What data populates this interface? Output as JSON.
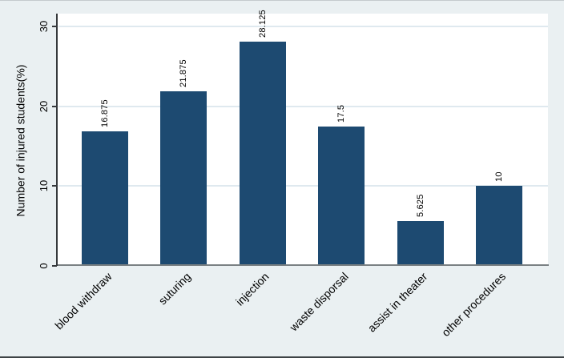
{
  "chart_data": {
    "type": "bar",
    "title": "",
    "xlabel": "",
    "ylabel": "Number of injured students(%)",
    "categories": [
      "blood withdraw",
      "suturing",
      "injection",
      "waste disporsal",
      "assist in theater",
      "other procedures"
    ],
    "values": [
      16.875,
      21.875,
      28.125,
      17.5,
      5.625,
      10
    ],
    "bar_value_labels": [
      "16.875",
      "21.875",
      "28.125",
      "17.5",
      "5.625",
      "10"
    ],
    "ylim": [
      0,
      30
    ],
    "yticks": [
      0,
      10,
      20,
      30
    ],
    "ytick_labels": [
      "0",
      "10",
      "20",
      "30"
    ],
    "grid": "horizontal gridlines at y ticks",
    "legend": "none",
    "x_label_angle_deg": 45,
    "value_label_angle_deg": 90,
    "colors": {
      "bar": "#1d4a71",
      "figure_background": "#eaf0f2",
      "plot_background": "#ffffff",
      "gridline": "#dfe9ef",
      "y_axis_line": "#36393c",
      "x_axis_line": "#7b8184",
      "text": "#000000"
    }
  }
}
